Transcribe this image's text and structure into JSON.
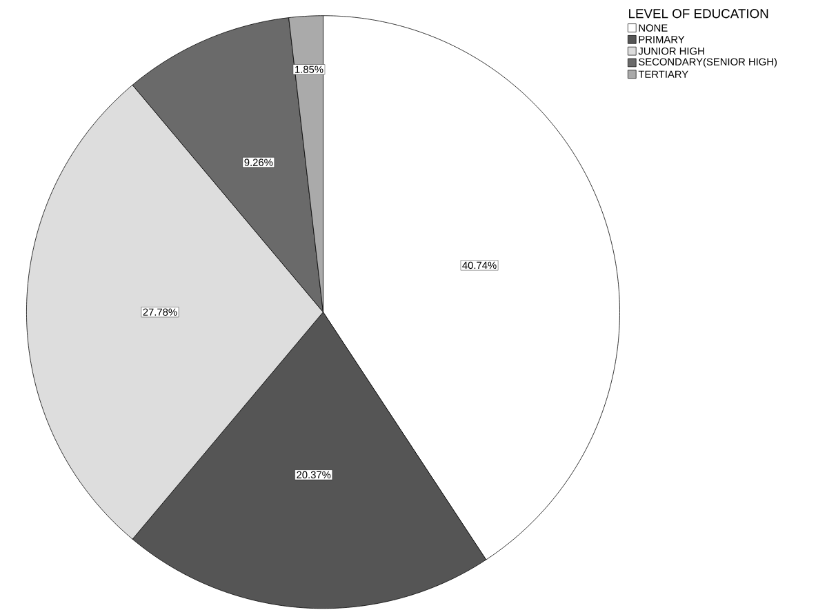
{
  "chart_data": {
    "type": "pie",
    "legend_title": "LEVEL OF EDUCATION",
    "categories": [
      "NONE",
      "PRIMARY",
      "JUNIOR HIGH",
      "SECONDARY(SENIOR HIGH)",
      "TERTIARY"
    ],
    "values": [
      40.74,
      20.37,
      27.78,
      9.26,
      1.85
    ],
    "value_labels": [
      "40.74%",
      "20.37%",
      "27.78%",
      "9.26%",
      "1.85%"
    ],
    "colors": [
      "#ffffff",
      "#555555",
      "#dddddd",
      "#6a6a6a",
      "#aaaaaa"
    ],
    "legend": "top right"
  }
}
